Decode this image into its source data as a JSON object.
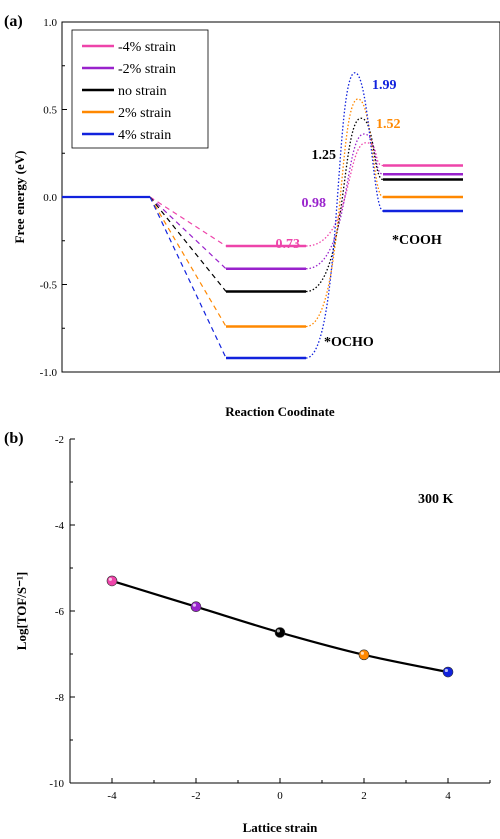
{
  "colors": {
    "m4": "#ee44aa",
    "m2": "#9922cc",
    "n0": "#000000",
    "p2": "#ff8800",
    "p4": "#1122dd",
    "curve": "#000000"
  },
  "chart_data": [
    {
      "panel": "(a)",
      "type": "line",
      "subtype": "free-energy-diagram",
      "xlabel": "Reaction Coodinate",
      "ylabel": "Free energy (eV)",
      "ylim": [
        -1.0,
        1.0
      ],
      "yticks": [
        "-1.0",
        "-0.5",
        "0.0",
        "0.5",
        "1.0"
      ],
      "legend_position": "top-left",
      "states": [
        "initial",
        "*OCHO",
        "TS",
        "*COOH"
      ],
      "state_labels": {
        "ocho": "*OCHO",
        "cooh": "*COOH"
      },
      "series": [
        {
          "name": "-4% strain",
          "color_key": "m4",
          "initial": 0.0,
          "ocho": -0.28,
          "ts": 0.31,
          "cooh": 0.18,
          "barrier_label": "0.73"
        },
        {
          "name": "-2% strain",
          "color_key": "m2",
          "initial": 0.0,
          "ocho": -0.41,
          "ts": 0.36,
          "cooh": 0.13,
          "barrier_label": "0.98"
        },
        {
          "name": "no strain",
          "color_key": "n0",
          "initial": 0.0,
          "ocho": -0.54,
          "ts": 0.45,
          "cooh": 0.1,
          "barrier_label": "1.25"
        },
        {
          "name": "2% strain",
          "color_key": "p2",
          "initial": 0.0,
          "ocho": -0.74,
          "ts": 0.56,
          "cooh": 0.0,
          "barrier_label": "1.52"
        },
        {
          "name": "4% strain",
          "color_key": "p4",
          "initial": 0.0,
          "ocho": -0.92,
          "ts": 0.71,
          "cooh": -0.08,
          "barrier_label": "1.99"
        }
      ]
    },
    {
      "panel": "(b)",
      "type": "line",
      "xlabel": "Lattice strain",
      "ylabel": "Log[TOF/S⁻¹]",
      "xlim": [
        -5,
        5
      ],
      "ylim": [
        -10,
        -2
      ],
      "xticks": [
        "-4",
        "-2",
        "0",
        "2",
        "4"
      ],
      "yticks": [
        "-10",
        "-8",
        "-6",
        "-4",
        "-2"
      ],
      "annotation": "300 K",
      "points": [
        {
          "x": -4,
          "y": -5.3,
          "color_key": "m4"
        },
        {
          "x": -2,
          "y": -5.9,
          "color_key": "m2"
        },
        {
          "x": 0,
          "y": -6.5,
          "color_key": "n0"
        },
        {
          "x": 2,
          "y": -7.02,
          "color_key": "p2"
        },
        {
          "x": 4,
          "y": -7.42,
          "color_key": "p4"
        }
      ]
    }
  ]
}
